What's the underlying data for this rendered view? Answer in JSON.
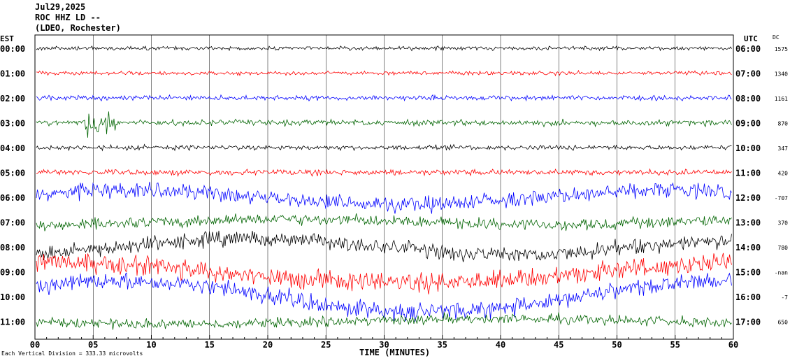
{
  "header": {
    "date": "Jul29,2025",
    "station": "ROC HHZ LD --",
    "network": "(LDEO, Rochester)"
  },
  "left_axis_title": "EST",
  "right_axis_title": "UTC",
  "dc_title": "DC",
  "x_axis_title": "TIME (MINUTES)",
  "footer_note": "Each Vertical Division = 333.33 microvolts",
  "colors": {
    "black": "#000000",
    "red": "#ff0000",
    "blue": "#0000ff",
    "green": "#006400"
  },
  "chart_data": {
    "type": "line",
    "title": "ROC HHZ LD --",
    "xlabel": "TIME (MINUTES)",
    "xlim": [
      0,
      60
    ],
    "x_ticks": [
      "00",
      "05",
      "10",
      "15",
      "20",
      "25",
      "30",
      "35",
      "40",
      "45",
      "50",
      "55",
      "60"
    ],
    "rows": [
      {
        "est": "00:00",
        "utc": "06:00",
        "dc": "1575",
        "color": "black"
      },
      {
        "est": "01:00",
        "utc": "07:00",
        "dc": "1340",
        "color": "red"
      },
      {
        "est": "02:00",
        "utc": "08:00",
        "dc": "1161",
        "color": "blue"
      },
      {
        "est": "03:00",
        "utc": "09:00",
        "dc": "870",
        "color": "green"
      },
      {
        "est": "04:00",
        "utc": "10:00",
        "dc": "347",
        "color": "black"
      },
      {
        "est": "05:00",
        "utc": "11:00",
        "dc": "420",
        "color": "red"
      },
      {
        "est": "06:00",
        "utc": "12:00",
        "dc": "-707",
        "color": "blue"
      },
      {
        "est": "07:00",
        "utc": "13:00",
        "dc": "370",
        "color": "green"
      },
      {
        "est": "08:00",
        "utc": "14:00",
        "dc": "780",
        "color": "black"
      },
      {
        "est": "09:00",
        "utc": "15:00",
        "dc": "-nan",
        "color": "red"
      },
      {
        "est": "10:00",
        "utc": "16:00",
        "dc": "-7",
        "color": "blue"
      },
      {
        "est": "11:00",
        "utc": "17:00",
        "dc": "650",
        "color": "green"
      }
    ]
  }
}
